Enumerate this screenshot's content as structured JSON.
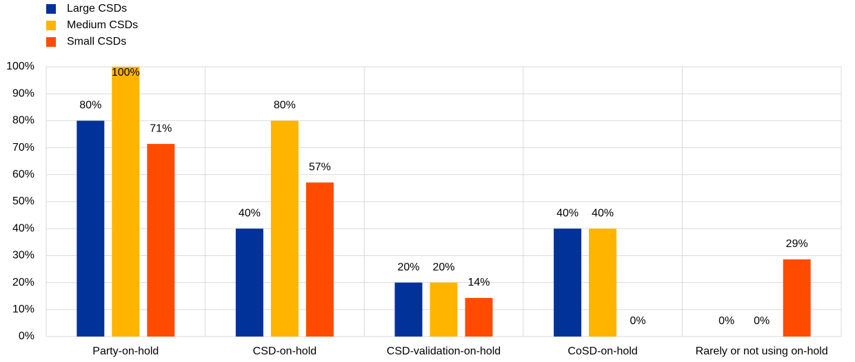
{
  "chart_data": {
    "type": "bar",
    "categories": [
      "Party-on-hold",
      "CSD-on-hold",
      "CSD-validation-on-hold",
      "CoSD-on-hold",
      "Rarely or not using on-hold"
    ],
    "series": [
      {
        "name": "Large CSDs",
        "color": "#003299",
        "values": [
          80,
          40,
          20,
          40,
          0
        ],
        "value_labels": [
          "80%",
          "40%",
          "20%",
          "40%",
          "0%"
        ]
      },
      {
        "name": "Medium CSDs",
        "color": "#ffb400",
        "values": [
          100,
          80,
          20,
          40,
          0
        ],
        "value_labels": [
          "100%",
          "80%",
          "20%",
          "40%",
          "0%"
        ]
      },
      {
        "name": "Small CSDs",
        "color": "#ff4b00",
        "values": [
          71.4,
          57.1,
          14.3,
          0,
          28.6
        ],
        "value_labels": [
          "71%",
          "57%",
          "14%",
          "0%",
          "29%"
        ]
      }
    ],
    "ylim": [
      0,
      100
    ],
    "yticks": [
      {
        "value": 0,
        "label": "0%"
      },
      {
        "value": 10,
        "label": "10%"
      },
      {
        "value": 20,
        "label": "20%"
      },
      {
        "value": 30,
        "label": "30%"
      },
      {
        "value": 40,
        "label": "40%"
      },
      {
        "value": 50,
        "label": "50%"
      },
      {
        "value": 60,
        "label": "60%"
      },
      {
        "value": 70,
        "label": "70%"
      },
      {
        "value": 80,
        "label": "80%"
      },
      {
        "value": 90,
        "label": "90%"
      },
      {
        "value": 100,
        "label": "100%"
      }
    ],
    "grid": true,
    "legend": "top-left"
  }
}
